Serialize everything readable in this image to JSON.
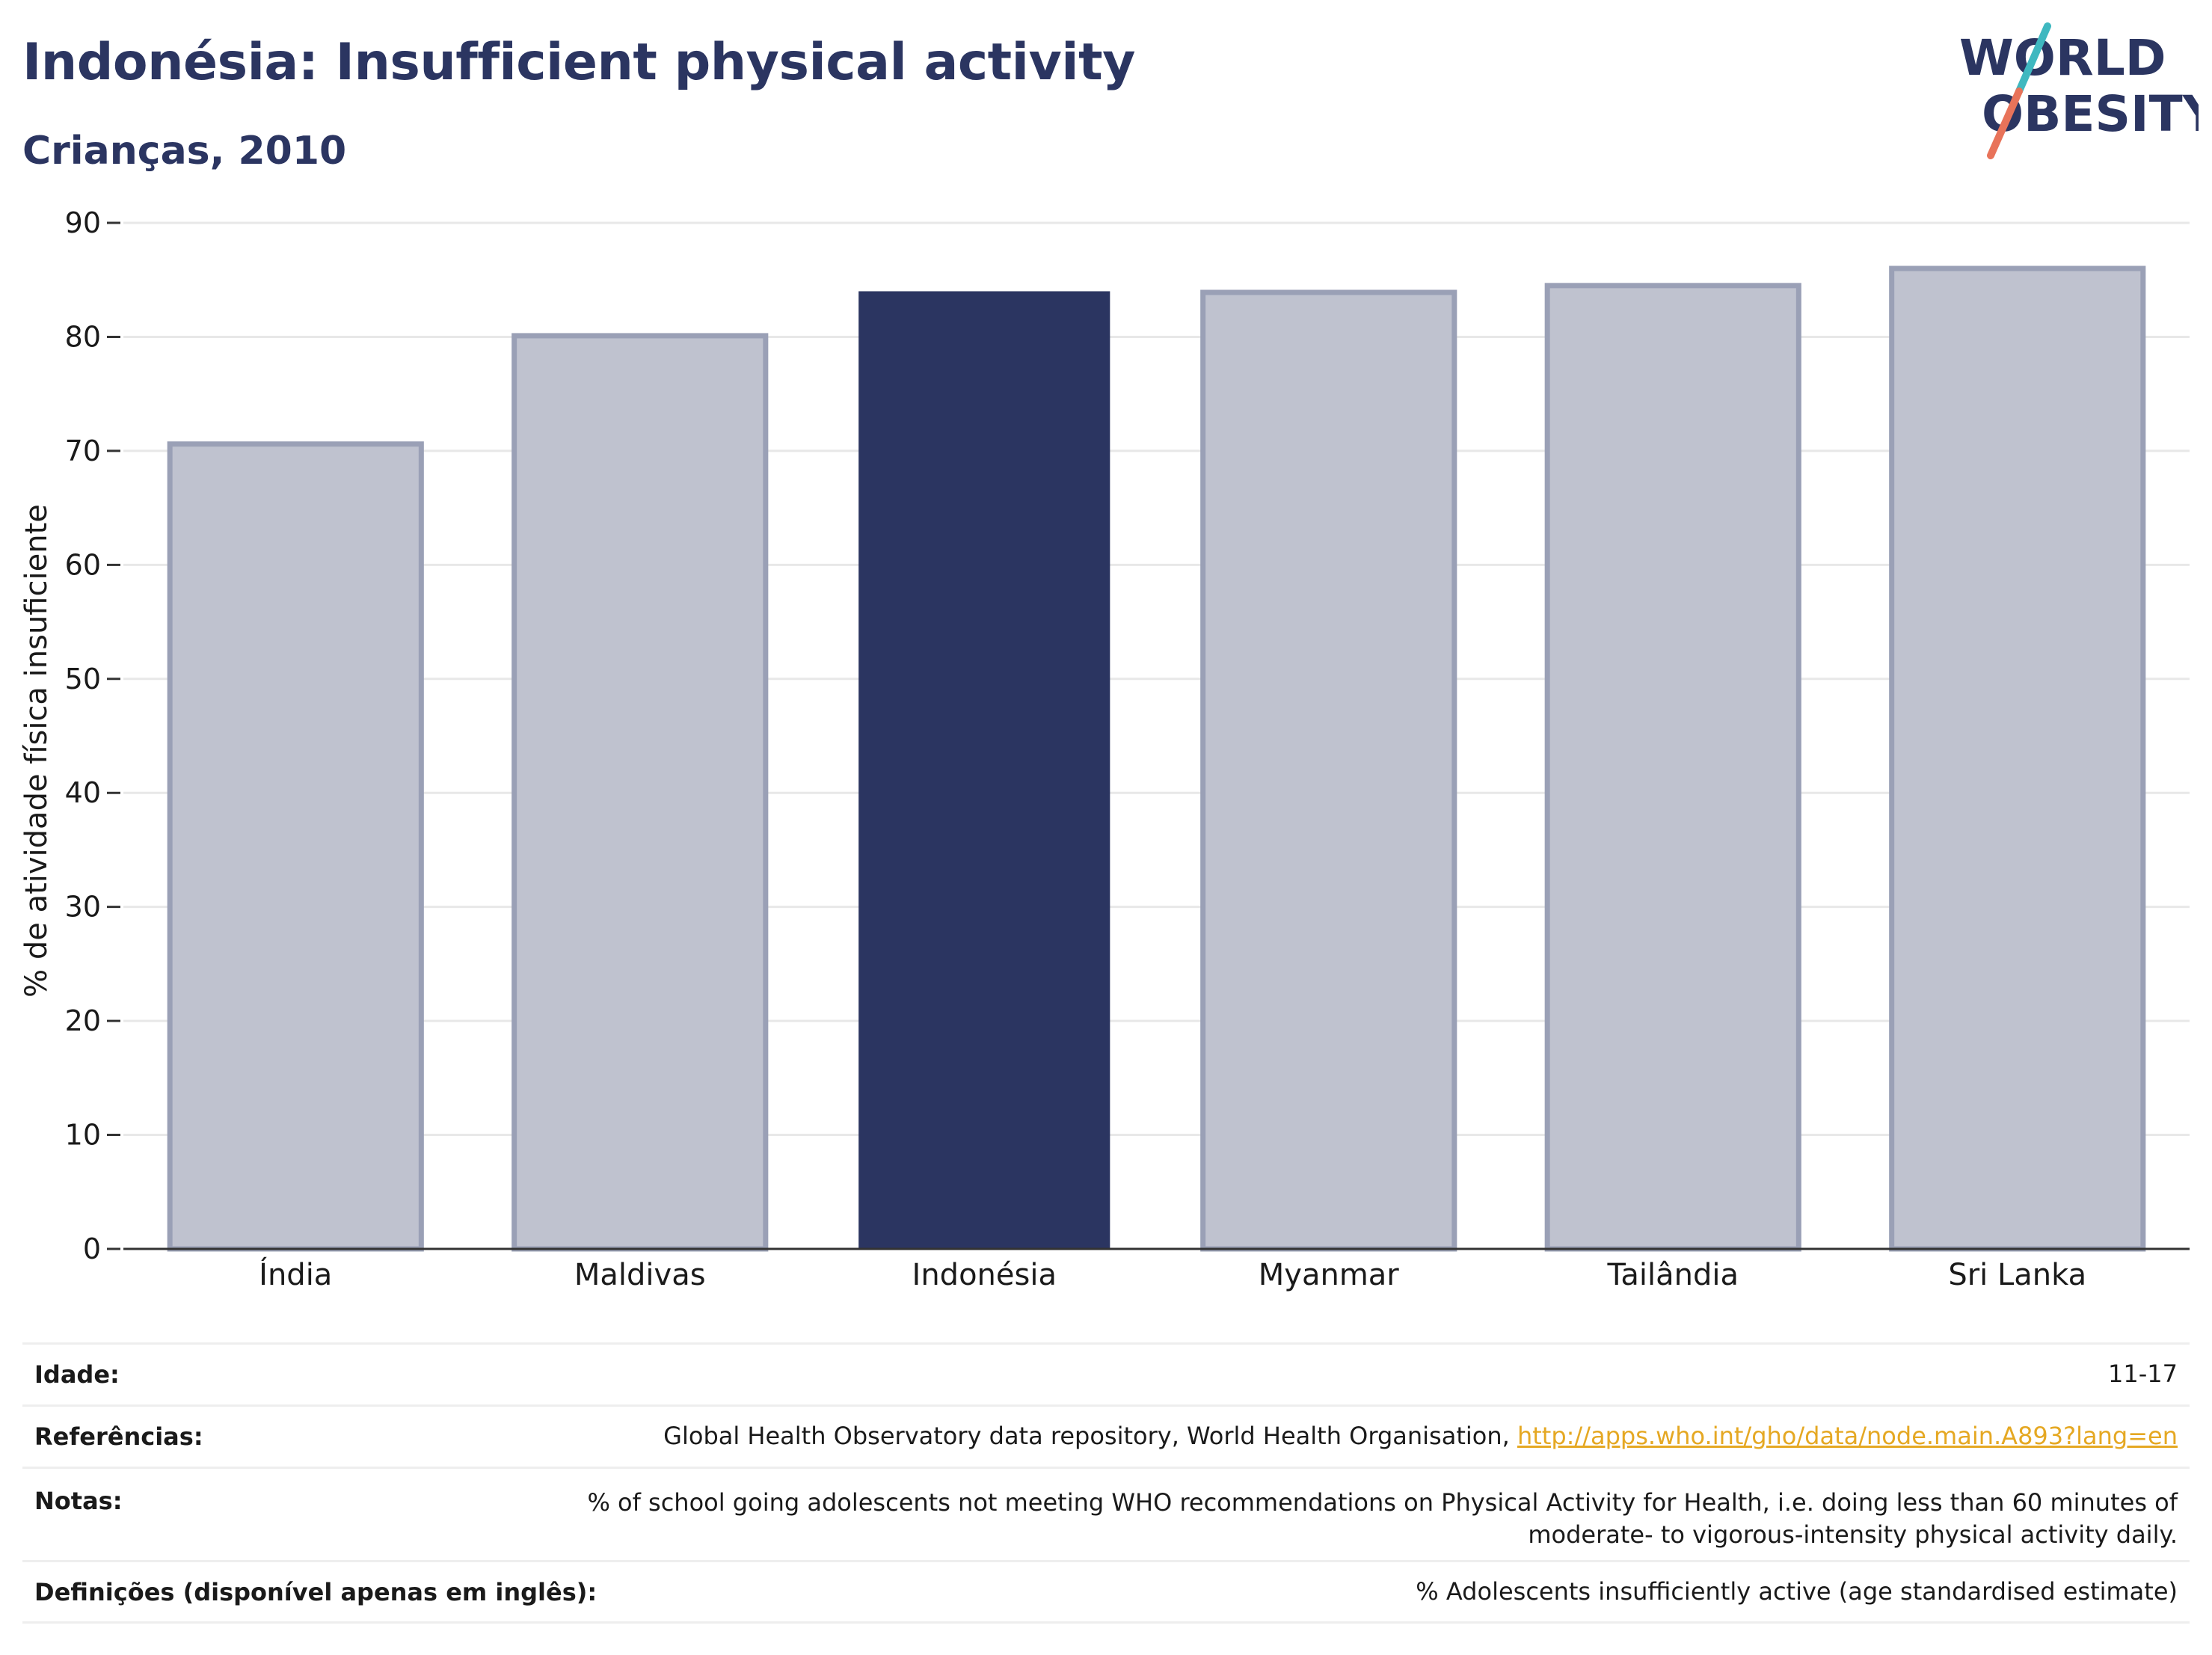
{
  "header": {
    "title": "Indonésia: Insufficient physical activity",
    "subtitle": "Crianças, 2010"
  },
  "logo": {
    "line1": "WORLD",
    "line2": "OBESITY",
    "colors": {
      "text": "#2b3561",
      "slash_teal": "#3fb8c0",
      "slash_coral": "#e8735a"
    }
  },
  "chart_data": {
    "type": "bar",
    "categories": [
      "Índia",
      "Maldivas",
      "Indonésia",
      "Myanmar",
      "Tailândia",
      "Sri Lanka"
    ],
    "values": [
      70.6,
      80.1,
      84.0,
      83.9,
      84.5,
      86.0
    ],
    "highlight": "Indonésia",
    "title": "",
    "xlabel": "",
    "ylabel": "% de atividade física insuficiente",
    "ylim": [
      0,
      90
    ],
    "yticks": [
      0,
      10,
      20,
      30,
      40,
      50,
      60,
      70,
      80,
      90
    ],
    "grid": true,
    "colors": {
      "highlight": "#2b3561",
      "other_fill": "#bfc2cf",
      "other_stroke": "#9aa0b6",
      "grid": "#e8e8e8",
      "axis": "#333333"
    }
  },
  "info": {
    "age": {
      "label": "Idade:",
      "value": "11-17"
    },
    "references": {
      "label": "Referências:",
      "text": "Global Health Observatory data repository, World Health Organisation,",
      "link": "http://apps.who.int/gho/data/node.main.A893?lang=en"
    },
    "notes": {
      "label": "Notas:",
      "line1": "% of school going adolescents not meeting WHO recommendations on Physical Activity for Health, i.e. doing less than 60 minutes of",
      "line2": "moderate- to vigorous-intensity physical activity daily."
    },
    "definitions": {
      "label": "Definições (disponível apenas em inglês):",
      "value": "% Adolescents insufficiently active (age standardised estimate)"
    }
  }
}
